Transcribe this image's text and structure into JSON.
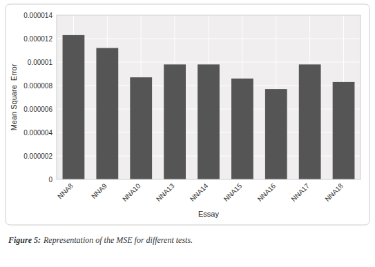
{
  "chart_data": {
    "type": "bar",
    "title": "Figure 5:",
    "subtitle": "Representation of the MSE for different tests.",
    "x_label": "Essay",
    "y_label": "Mean Square  Error",
    "categories": [
      "NNA8",
      "NNA9",
      "NNA10",
      "NNA13",
      "NNA14",
      "NNA15",
      "NNA16",
      "NNA17",
      "NNA18"
    ],
    "values": [
      1.23e-05,
      1.12e-05,
      8.7e-06,
      9.8e-06,
      9.8e-06,
      8.6e-06,
      7.7e-06,
      9.8e-06,
      8.3e-06
    ],
    "color": "#555555",
    "ylim": [
      0,
      1.4e-05
    ],
    "yticks": [
      0,
      {
        "value": 2e-06,
        "label": "0.000002"
      },
      {
        "value": 4e-06,
        "label": "0.000004"
      },
      {
        "value": 6e-06,
        "label": "0.000006"
      },
      {
        "value": 8e-06,
        "label": "0.000008"
      },
      {
        "value": 1e-05,
        "label": "0.00001"
      },
      {
        "value": 1.2e-05,
        "label": "0.000012"
      },
      {
        "value": 1.4e-05,
        "label": "0.000014"
      }
    ],
    "grid": true
  }
}
